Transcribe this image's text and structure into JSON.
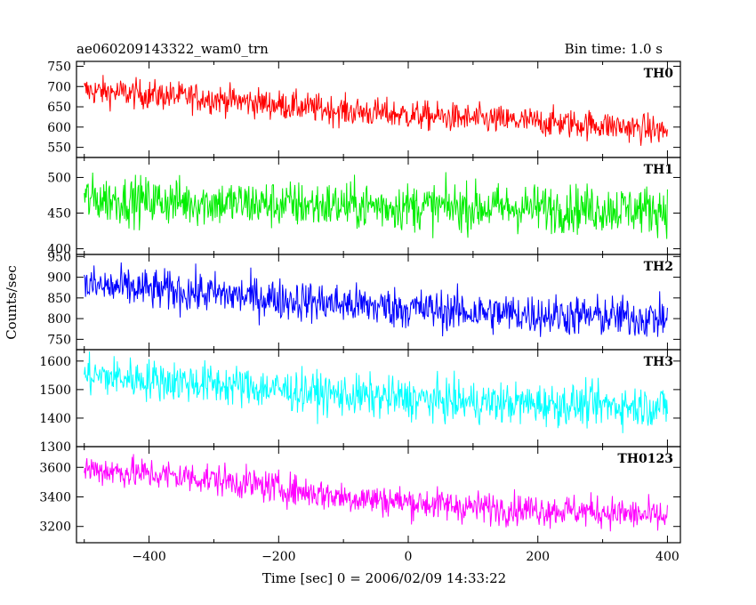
{
  "header": {
    "title": "ae060209143322_wam0_trn",
    "bin_time": "Bin time: 1.0 s"
  },
  "chart_data": {
    "type": "line",
    "xlabel": "Time [sec] 0 = 2006/02/09 14:33:22",
    "ylabel": "Counts/sec",
    "xlim": [
      -512,
      420
    ],
    "x_ticks": [
      -400,
      -200,
      0,
      200,
      400
    ],
    "x_tick_labels": [
      "−400",
      "−200",
      "0",
      "200",
      "400"
    ],
    "x_range": [
      -500,
      400
    ],
    "bin_time_s": 1.0,
    "grid": false,
    "panels": [
      {
        "name": "TH0",
        "color": "#ff0000",
        "ylim": [
          525,
          762
        ],
        "yticks": [
          550,
          600,
          650,
          700,
          750
        ],
        "trend": [
          {
            "x": -500,
            "y": 690
          },
          {
            "x": -300,
            "y": 670
          },
          {
            "x": -100,
            "y": 640
          },
          {
            "x": 100,
            "y": 620
          },
          {
            "x": 300,
            "y": 605
          },
          {
            "x": 400,
            "y": 590
          }
        ],
        "noise_halfwidth": 40
      },
      {
        "name": "TH1",
        "color": "#00ee00",
        "ylim": [
          392,
          528
        ],
        "yticks": [
          400,
          450,
          500
        ],
        "trend": [
          {
            "x": -500,
            "y": 470
          },
          {
            "x": -200,
            "y": 462
          },
          {
            "x": 100,
            "y": 458
          },
          {
            "x": 400,
            "y": 455
          }
        ],
        "noise_halfwidth": 37
      },
      {
        "name": "TH2",
        "color": "#0000ff",
        "ylim": [
          725,
          955
        ],
        "yticks": [
          750,
          800,
          850,
          900,
          950
        ],
        "trend": [
          {
            "x": -500,
            "y": 880
          },
          {
            "x": -300,
            "y": 860
          },
          {
            "x": -100,
            "y": 835
          },
          {
            "x": 100,
            "y": 815
          },
          {
            "x": 300,
            "y": 805
          },
          {
            "x": 400,
            "y": 800
          }
        ],
        "noise_halfwidth": 55
      },
      {
        "name": "TH3",
        "color": "#00ffff",
        "ylim": [
          1300,
          1640
        ],
        "yticks": [
          1300,
          1400,
          1500,
          1600
        ],
        "trend": [
          {
            "x": -500,
            "y": 1550
          },
          {
            "x": -300,
            "y": 1520
          },
          {
            "x": -100,
            "y": 1480
          },
          {
            "x": 100,
            "y": 1455
          },
          {
            "x": 300,
            "y": 1445
          },
          {
            "x": 400,
            "y": 1440
          }
        ],
        "noise_halfwidth": 80
      },
      {
        "name": "TH0123",
        "color": "#ff00ff",
        "ylim": [
          3090,
          3740
        ],
        "yticks": [
          3200,
          3400,
          3600
        ],
        "trend": [
          {
            "x": -500,
            "y": 3590
          },
          {
            "x": -300,
            "y": 3520
          },
          {
            "x": -100,
            "y": 3400
          },
          {
            "x": 100,
            "y": 3330
          },
          {
            "x": 300,
            "y": 3300
          },
          {
            "x": 400,
            "y": 3260
          }
        ],
        "noise_halfwidth": 120
      }
    ]
  }
}
